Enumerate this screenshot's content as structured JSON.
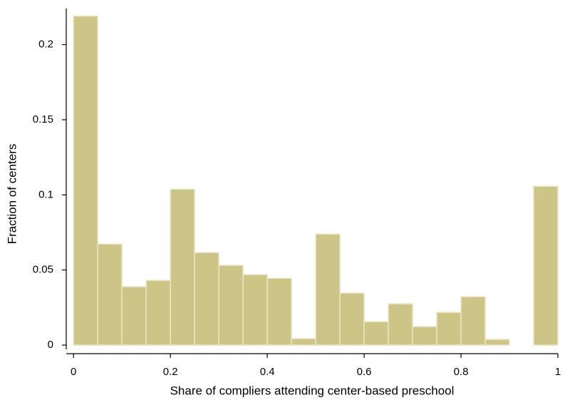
{
  "chart_data": {
    "type": "histogram",
    "xlabel": "Share of compliers attending center-based preschool",
    "ylabel": "Fraction of centers",
    "bins": [
      0,
      0.05,
      0.1,
      0.15,
      0.2,
      0.25,
      0.3,
      0.35,
      0.4,
      0.45,
      0.5,
      0.55,
      0.6,
      0.65,
      0.7,
      0.75,
      0.8,
      0.85,
      0.9,
      0.95,
      1
    ],
    "values": [
      0.219,
      0.0673,
      0.0389,
      0.0431,
      0.1038,
      0.0616,
      0.0531,
      0.0469,
      0.0445,
      0.0043,
      0.0739,
      0.0346,
      0.0156,
      0.0275,
      0.0123,
      0.0218,
      0.0322,
      0.0038,
      0,
      0.1057
    ],
    "color": "#cdc487",
    "edgecolor": "#ebe6c6",
    "xlim": [
      -0.015,
      1
    ],
    "xticks": [
      0,
      0.2,
      0.4,
      0.6,
      0.8,
      1
    ],
    "ylim": [
      0,
      0.224
    ],
    "yticks": [
      0,
      0.05,
      0.1,
      0.15,
      0.2
    ]
  }
}
